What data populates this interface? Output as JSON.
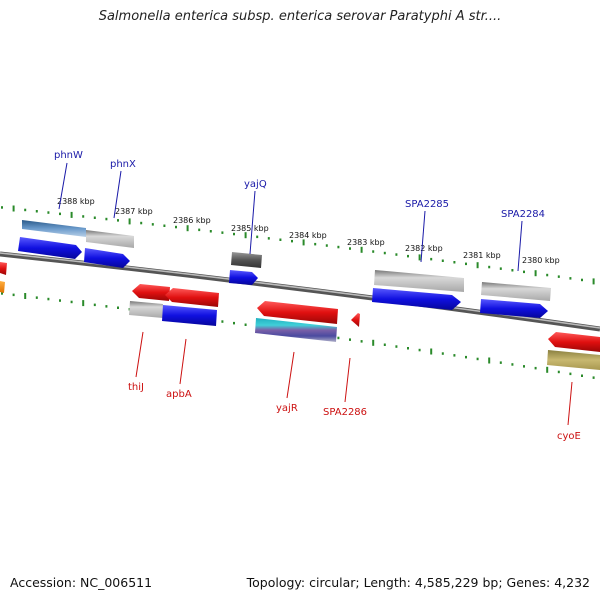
{
  "title": "Salmonella enterica subsp. enterica serovar Paratyphi A str....",
  "footer": {
    "accession": "Accession: NC_006511",
    "topology": "Topology: circular; Length: 4,585,229 bp; Genes: 4,232"
  },
  "scale_labels": [
    "2388 kbp",
    "2387 kbp",
    "2386 kbp",
    "2385 kbp",
    "2384 kbp",
    "2383 kbp",
    "2382 kbp",
    "2381 kbp",
    "2380 kbp"
  ],
  "genes_top": [
    "phnW",
    "phnX",
    "yajQ",
    "SPA2285",
    "SPA2284"
  ],
  "genes_bottom": [
    "thiJ",
    "apbA",
    "yajR",
    "SPA2286",
    "cyoE"
  ],
  "colors": {
    "top_label": "#1a1aa8",
    "bottom_label": "#cc1111",
    "tick": "#2a8a2a",
    "forward": "#1414e0",
    "reverse": "#e01414",
    "backbone": "#777777"
  }
}
